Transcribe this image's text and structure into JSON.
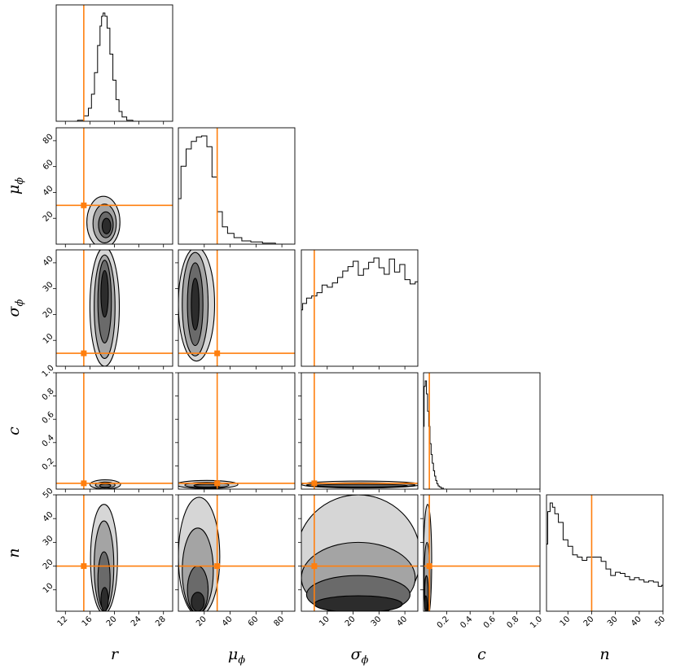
{
  "chart_data": {
    "type": "corner",
    "parameters": [
      {
        "key": "r",
        "label": "r",
        "range": [
          10.5,
          29.5
        ],
        "ticks": [
          12,
          16,
          20,
          24,
          28
        ],
        "truth": 15
      },
      {
        "key": "mu_phi",
        "label": "μ",
        "sub": "ϕ",
        "range": [
          0,
          90
        ],
        "ticks": [
          20,
          40,
          60,
          80
        ],
        "truth": 30
      },
      {
        "key": "sigma_phi",
        "label": "σ",
        "sub": "ϕ",
        "range": [
          0,
          45
        ],
        "ticks": [
          10,
          20,
          30,
          40
        ],
        "truth": 5
      },
      {
        "key": "c",
        "label": "c",
        "range": [
          0,
          1.0
        ],
        "ticks": [
          0.2,
          0.4,
          0.6,
          0.8,
          1.0
        ],
        "tick_labels": [
          "0.2",
          "0.4",
          "0.6",
          "0.8",
          "1.0"
        ],
        "truth": 0.05
      },
      {
        "key": "n",
        "label": "n",
        "range": [
          1,
          50
        ],
        "ticks": [
          10,
          20,
          30,
          40,
          50
        ],
        "truth": 20
      }
    ],
    "marginals": {
      "r": {
        "x": [
          13.5,
          14.5,
          15.5,
          16.0,
          16.5,
          17.0,
          17.5,
          17.8,
          18.0,
          18.3,
          18.6,
          19.0,
          19.5,
          20.0,
          20.5,
          21.0,
          21.5,
          22.5,
          23.5
        ],
        "y": [
          0.0,
          0.01,
          0.05,
          0.12,
          0.25,
          0.45,
          0.7,
          0.88,
          0.97,
          1.0,
          0.97,
          0.86,
          0.62,
          0.38,
          0.2,
          0.09,
          0.04,
          0.01,
          0.0
        ]
      },
      "mu_phi": {
        "x": [
          0,
          4,
          8,
          12,
          16,
          20,
          24,
          28,
          32,
          36,
          40,
          46,
          52,
          60,
          70,
          80,
          88
        ],
        "y": [
          0.42,
          0.72,
          0.88,
          0.95,
          0.99,
          1.0,
          0.9,
          0.62,
          0.3,
          0.16,
          0.1,
          0.06,
          0.03,
          0.02,
          0.01,
          0.0,
          0.0
        ]
      },
      "sigma_phi": {
        "x": [
          0,
          1,
          3,
          5,
          7,
          9,
          11,
          13,
          15,
          17,
          19,
          21,
          23,
          25,
          27,
          29,
          31,
          33,
          35,
          37,
          39,
          41,
          43,
          45
        ],
        "y": [
          0.52,
          0.58,
          0.63,
          0.65,
          0.68,
          0.75,
          0.73,
          0.77,
          0.82,
          0.88,
          0.92,
          0.97,
          0.84,
          0.9,
          0.96,
          1.0,
          0.91,
          0.85,
          0.99,
          0.87,
          0.94,
          0.8,
          0.76,
          0.78
        ]
      },
      "c": {
        "x": [
          0.0,
          0.01,
          0.02,
          0.03,
          0.04,
          0.05,
          0.06,
          0.07,
          0.08,
          0.09,
          0.1,
          0.11,
          0.12,
          0.13,
          0.14,
          0.16,
          0.18,
          0.2
        ],
        "y": [
          0.58,
          0.95,
          1.0,
          0.88,
          0.72,
          0.58,
          0.42,
          0.32,
          0.24,
          0.17,
          0.12,
          0.08,
          0.05,
          0.03,
          0.02,
          0.01,
          0.0,
          0.0
        ]
      },
      "n": {
        "x": [
          1,
          2,
          3,
          4,
          5,
          7,
          9,
          11,
          13,
          15,
          17,
          19,
          21,
          23,
          25,
          27,
          29,
          31,
          33,
          35,
          37,
          39,
          41,
          43,
          45,
          47,
          49,
          50
        ],
        "y": [
          0.62,
          0.92,
          1.0,
          0.96,
          0.9,
          0.82,
          0.66,
          0.6,
          0.52,
          0.5,
          0.47,
          0.5,
          0.5,
          0.5,
          0.46,
          0.39,
          0.33,
          0.36,
          0.35,
          0.32,
          0.29,
          0.31,
          0.29,
          0.27,
          0.28,
          0.27,
          0.23,
          0.24
        ]
      }
    },
    "contours": [
      {
        "x": "r",
        "y": "mu_phi",
        "levels": [
          {
            "cx": 18.2,
            "cy": 17,
            "rx": 2.7,
            "ry": 20
          },
          {
            "cx": 18.4,
            "cy": 16,
            "rx": 1.9,
            "ry": 15
          },
          {
            "cx": 18.6,
            "cy": 15,
            "rx": 1.2,
            "ry": 10
          },
          {
            "cx": 18.7,
            "cy": 14,
            "rx": 0.7,
            "ry": 6
          }
        ]
      },
      {
        "x": "r",
        "y": "sigma_phi",
        "levels": [
          {
            "cx": 18.4,
            "cy": 23,
            "rx": 2.4,
            "ry": 23
          },
          {
            "cx": 18.4,
            "cy": 23,
            "rx": 1.7,
            "ry": 20
          },
          {
            "cx": 18.4,
            "cy": 25,
            "rx": 1.1,
            "ry": 16
          },
          {
            "cx": 18.4,
            "cy": 28,
            "rx": 0.6,
            "ry": 9
          }
        ]
      },
      {
        "x": "mu_phi",
        "y": "sigma_phi",
        "levels": [
          {
            "cx": 14,
            "cy": 24,
            "rx": 14,
            "ry": 22
          },
          {
            "cx": 13,
            "cy": 24,
            "rx": 10,
            "ry": 20
          },
          {
            "cx": 13,
            "cy": 24,
            "rx": 6,
            "ry": 16
          },
          {
            "cx": 13,
            "cy": 24,
            "rx": 3,
            "ry": 10
          }
        ]
      },
      {
        "x": "r",
        "y": "c",
        "levels": [
          {
            "cx": 18.5,
            "cy": 0.04,
            "rx": 2.5,
            "ry": 0.04
          },
          {
            "cx": 18.5,
            "cy": 0.035,
            "rx": 1.6,
            "ry": 0.026
          },
          {
            "cx": 18.5,
            "cy": 0.03,
            "rx": 0.9,
            "ry": 0.015
          }
        ]
      },
      {
        "x": "mu_phi",
        "y": "c",
        "levels": [
          {
            "cx": 22,
            "cy": 0.04,
            "rx": 24,
            "ry": 0.035
          },
          {
            "cx": 22,
            "cy": 0.035,
            "rx": 17,
            "ry": 0.023
          },
          {
            "cx": 22,
            "cy": 0.03,
            "rx": 10,
            "ry": 0.013
          }
        ]
      },
      {
        "x": "sigma_phi",
        "y": "c",
        "levels": [
          {
            "cx": 23,
            "cy": 0.04,
            "rx": 23,
            "ry": 0.03
          },
          {
            "cx": 23,
            "cy": 0.035,
            "rx": 21,
            "ry": 0.02
          },
          {
            "cx": 23,
            "cy": 0.03,
            "rx": 18,
            "ry": 0.012
          }
        ]
      },
      {
        "x": "r",
        "y": "n",
        "levels": [
          {
            "cx": 18.3,
            "cy": 23,
            "rx": 2.2,
            "ry": 23
          },
          {
            "cx": 18.3,
            "cy": 20,
            "rx": 1.6,
            "ry": 19
          },
          {
            "cx": 18.3,
            "cy": 14,
            "rx": 1.0,
            "ry": 12
          },
          {
            "cx": 18.4,
            "cy": 6,
            "rx": 0.6,
            "ry": 5
          }
        ]
      },
      {
        "x": "mu_phi",
        "y": "n",
        "levels": [
          {
            "cx": 16,
            "cy": 24,
            "rx": 16,
            "ry": 25
          },
          {
            "cx": 15,
            "cy": 18,
            "rx": 12,
            "ry": 18
          },
          {
            "cx": 15,
            "cy": 10,
            "rx": 8,
            "ry": 10
          },
          {
            "cx": 15,
            "cy": 5,
            "rx": 5,
            "ry": 4
          }
        ]
      },
      {
        "x": "sigma_phi",
        "y": "n",
        "levels": [
          {
            "cx": 22,
            "cy": 24,
            "rx": 24,
            "ry": 26
          },
          {
            "cx": 22,
            "cy": 15,
            "rx": 22,
            "ry": 15
          },
          {
            "cx": 22,
            "cy": 8,
            "rx": 20,
            "ry": 8
          },
          {
            "cx": 22,
            "cy": 4,
            "rx": 17,
            "ry": 3.5
          }
        ]
      },
      {
        "x": "c",
        "y": "n",
        "levels": [
          {
            "cx": 0.035,
            "cy": 22,
            "rx": 0.035,
            "ry": 24
          },
          {
            "cx": 0.03,
            "cy": 15,
            "rx": 0.025,
            "ry": 15
          },
          {
            "cx": 0.025,
            "cy": 8,
            "rx": 0.016,
            "ry": 8
          },
          {
            "cx": 0.02,
            "cy": 4,
            "rx": 0.01,
            "ry": 3.5
          }
        ]
      }
    ],
    "colors": {
      "truth": "#ff7f0e",
      "hist": "#000000"
    }
  }
}
